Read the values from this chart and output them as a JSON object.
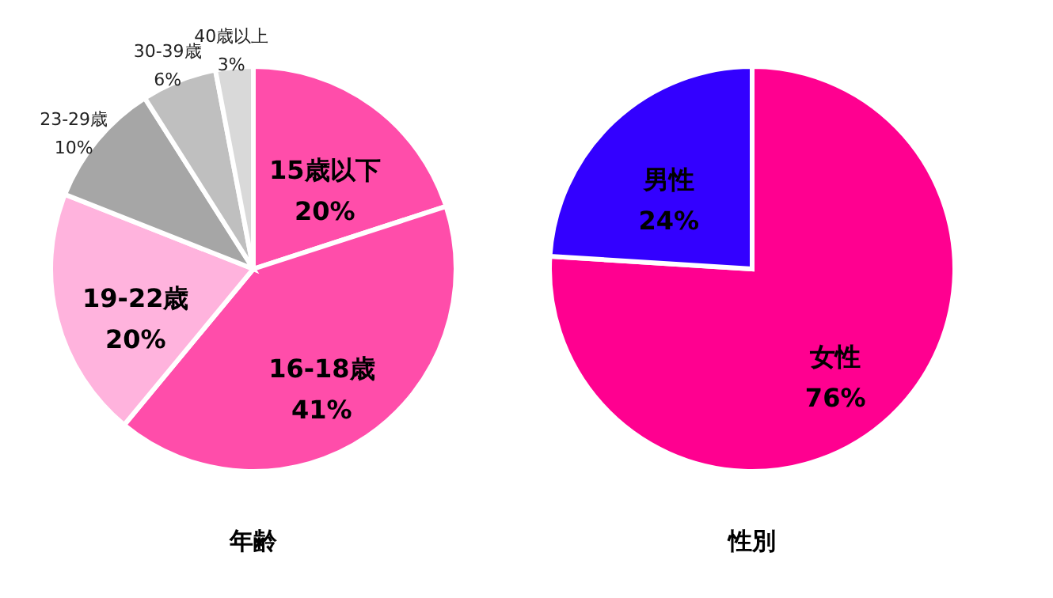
{
  "chart_data": [
    {
      "type": "pie",
      "title": "年齢",
      "categories": [
        "15歳以下",
        "16-18歳",
        "19-22歳",
        "23-29歳",
        "30-39歳",
        "40歳以上"
      ],
      "values": [
        20,
        41,
        20,
        10,
        6,
        3
      ],
      "value_labels": [
        "20%",
        "41%",
        "20%",
        "10%",
        "6%",
        "3%"
      ],
      "colors": [
        "#ff4daa",
        "#ff4daa",
        "#ffb3dd",
        "#a6a6a6",
        "#bfbfbf",
        "#d9d9d9"
      ]
    },
    {
      "type": "pie",
      "title": "性別",
      "categories": [
        "女性",
        "男性"
      ],
      "values": [
        76,
        24
      ],
      "value_labels": [
        "76%",
        "24%"
      ],
      "colors": [
        "#ff0090",
        "#3300ff"
      ]
    }
  ]
}
